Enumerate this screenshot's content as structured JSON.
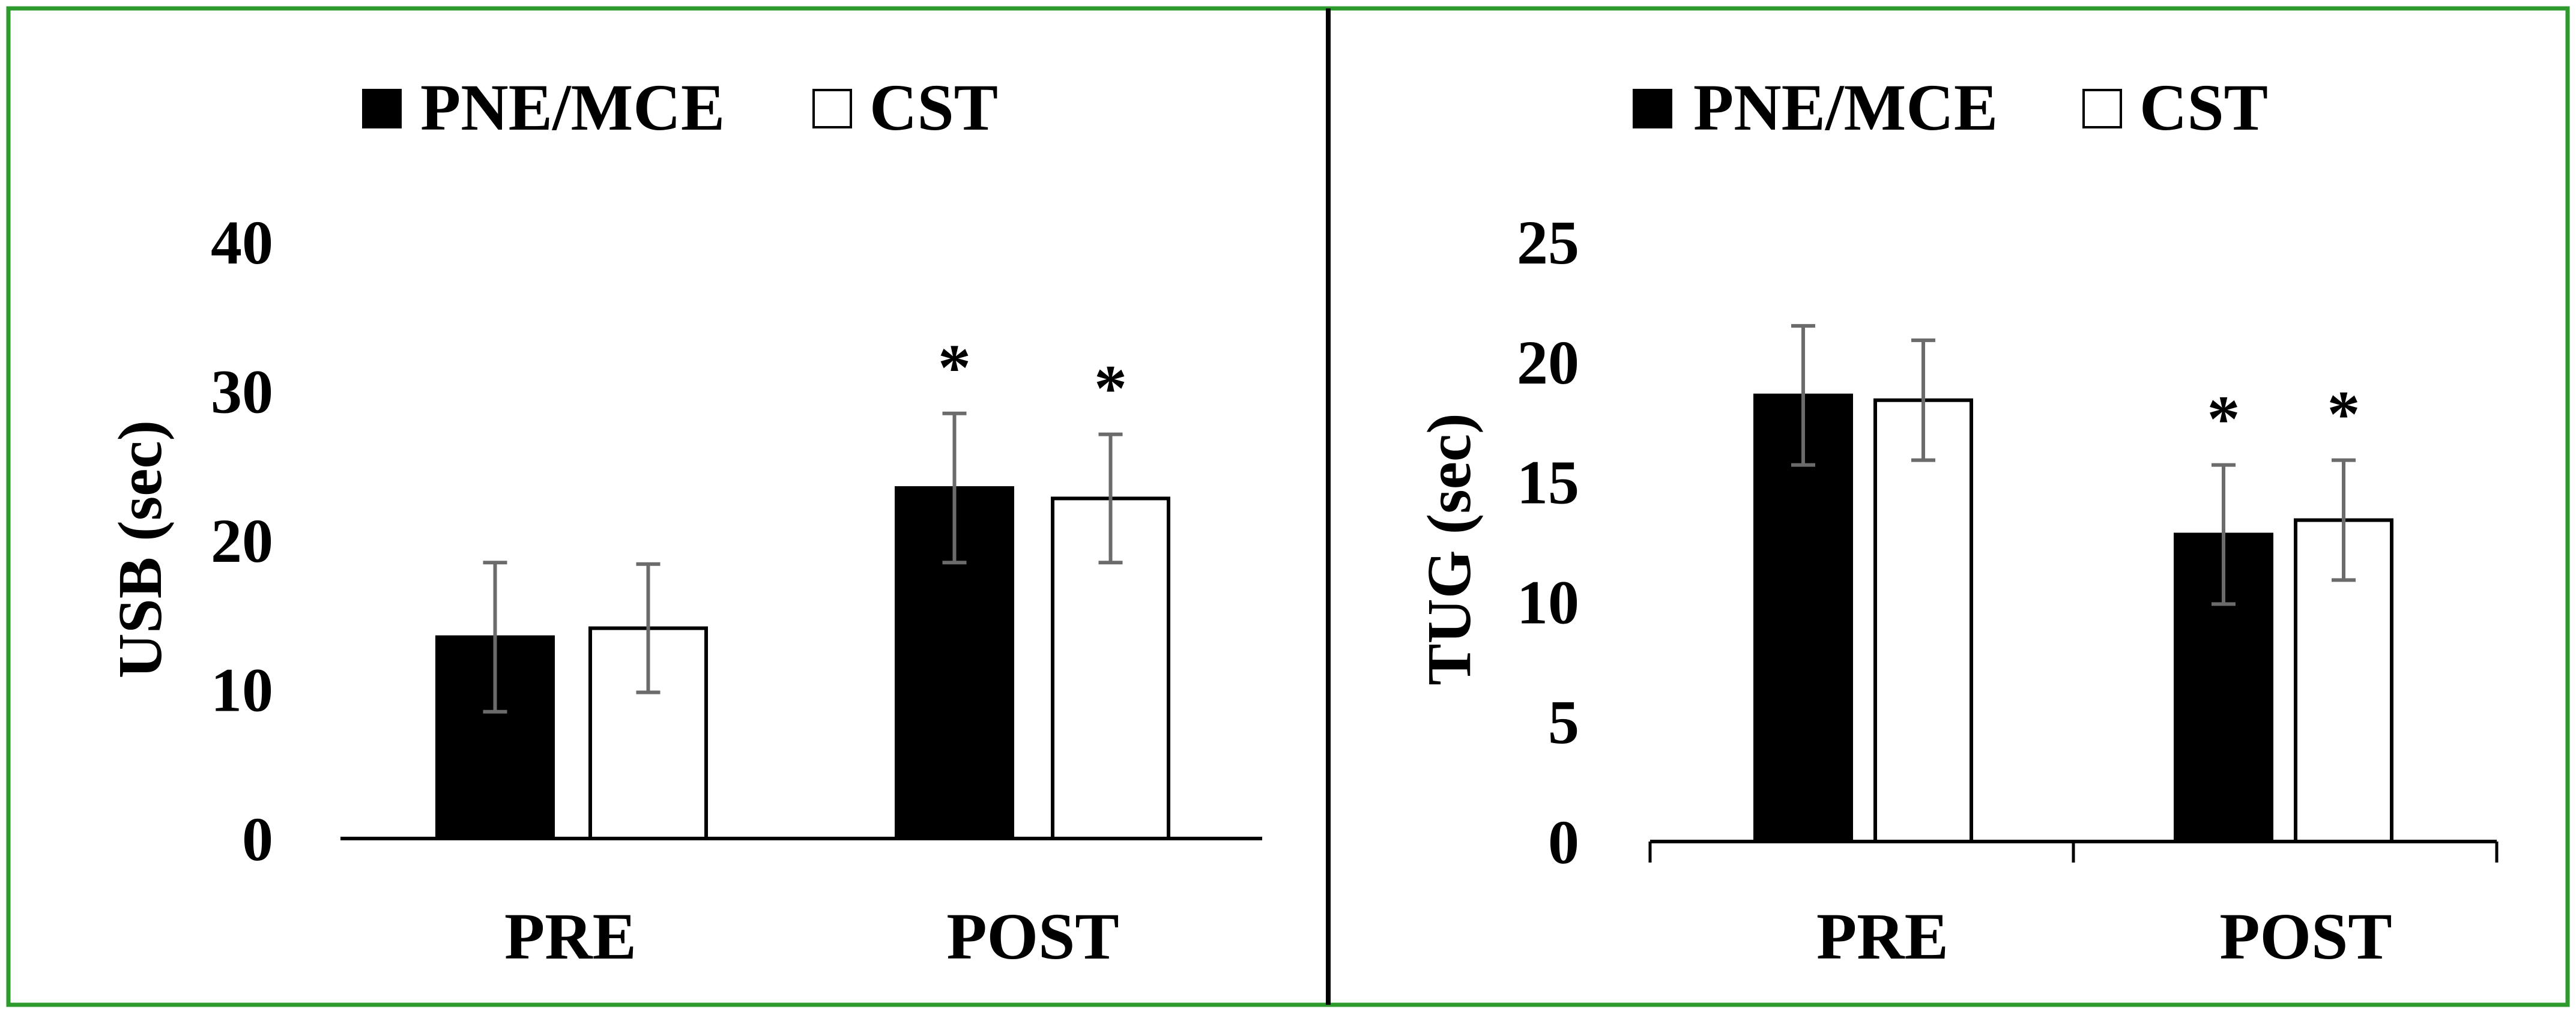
{
  "frame_color": "#2e9a2e",
  "divider_color": "#000000",
  "chart_data": [
    {
      "type": "bar",
      "title": "",
      "xlabel": "",
      "ylabel": "USB (sec)",
      "ylim": [
        0,
        40
      ],
      "yticks": [
        0,
        10,
        20,
        30,
        40
      ],
      "categories": [
        "PRE",
        "POST"
      ],
      "series": [
        {
          "name": "PNE/MCE",
          "fill": "#000000",
          "values": [
            13.5,
            23.5
          ],
          "errors": [
            5.0,
            5.0
          ],
          "markers": [
            "",
            "*"
          ]
        },
        {
          "name": "CST",
          "fill": "#ffffff",
          "values": [
            14.1,
            22.8
          ],
          "errors": [
            4.3,
            4.3
          ],
          "markers": [
            "",
            "*"
          ]
        }
      ],
      "legend_position": "top-center",
      "grid": false
    },
    {
      "type": "bar",
      "title": "",
      "xlabel": "",
      "ylabel": "TUG (sec)",
      "ylim": [
        0,
        25
      ],
      "yticks": [
        0,
        5,
        10,
        15,
        20,
        25
      ],
      "categories": [
        "PRE",
        "POST"
      ],
      "series": [
        {
          "name": "PNE/MCE",
          "fill": "#000000",
          "values": [
            18.6,
            12.8
          ],
          "errors": [
            2.9,
            2.9
          ],
          "markers": [
            "",
            "*"
          ]
        },
        {
          "name": "CST",
          "fill": "#ffffff",
          "values": [
            18.4,
            13.4
          ],
          "errors": [
            2.5,
            2.5
          ],
          "markers": [
            "",
            "*"
          ]
        }
      ],
      "legend_position": "top-center",
      "grid": false
    }
  ]
}
